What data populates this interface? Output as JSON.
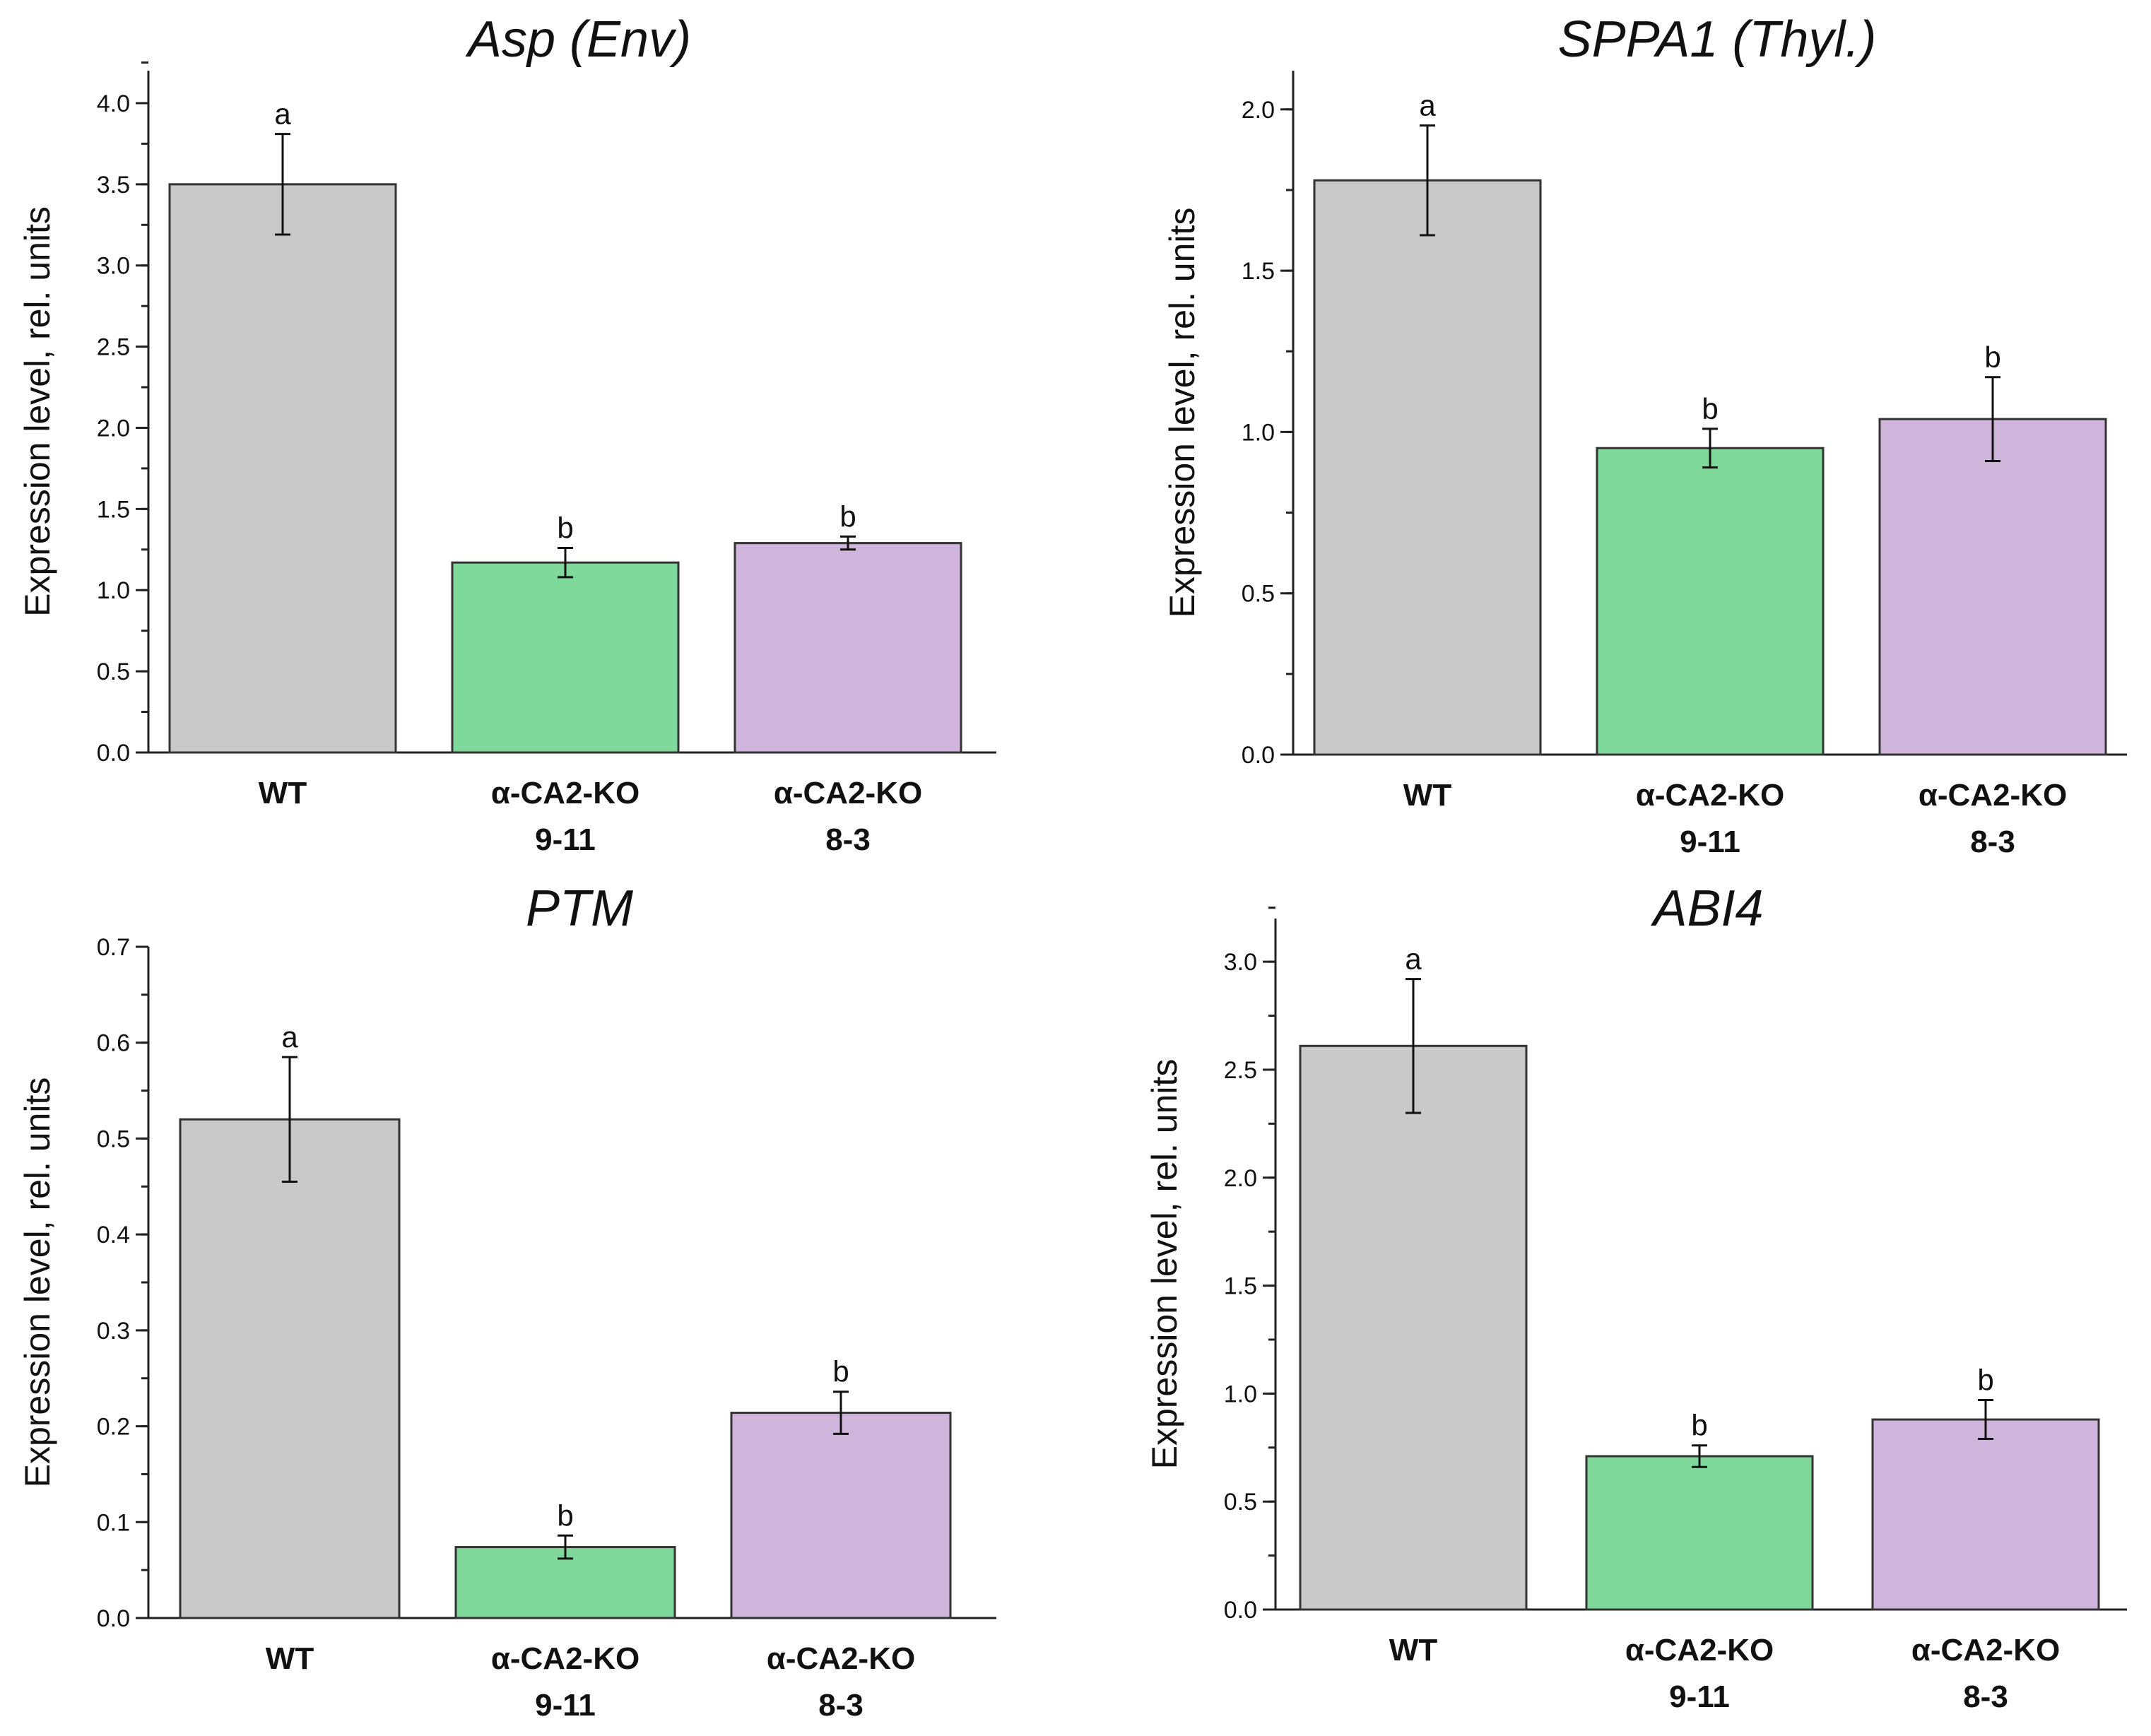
{
  "figure": {
    "panel_ids": [
      "asp",
      "sppa1",
      "ptm",
      "abi4"
    ]
  },
  "chart_data": [
    {
      "id": "asp",
      "type": "bar",
      "title": "Asp (Env)",
      "xlabel": "",
      "ylabel": "Expression level, rel. units",
      "categories": [
        {
          "line1": "WT",
          "line2": ""
        },
        {
          "line1": "α-CA2-KO",
          "line2": "9-11"
        },
        {
          "line1": "α-CA2-KO",
          "line2": "8-3"
        }
      ],
      "values": [
        3.5,
        1.17,
        1.29
      ],
      "errors": [
        0.31,
        0.09,
        0.04
      ],
      "significance": [
        "a",
        "b",
        "b"
      ],
      "colors": [
        "#c9c9c9",
        "#7ed99a",
        "#cfb5db"
      ],
      "ylim": [
        0,
        4.2
      ],
      "yticks": [
        "0.0",
        "0.5",
        "1.0",
        "1.5",
        "2.0",
        "2.5",
        "3.0",
        "3.5",
        "4.0"
      ],
      "ytick_values": [
        0,
        0.5,
        1.0,
        1.5,
        2.0,
        2.5,
        3.0,
        3.5,
        4.0
      ],
      "minor_step": 0.25,
      "grid": false
    },
    {
      "id": "sppa1",
      "type": "bar",
      "title": "SPPA1 (Thyl.)",
      "xlabel": "",
      "ylabel": "Expression level, rel. units",
      "categories": [
        {
          "line1": "WT",
          "line2": ""
        },
        {
          "line1": "α-CA2-KO",
          "line2": "9-11"
        },
        {
          "line1": "α-CA2-KO",
          "line2": "8-3"
        }
      ],
      "values": [
        1.78,
        0.95,
        1.04
      ],
      "errors": [
        0.17,
        0.06,
        0.13
      ],
      "significance": [
        "a",
        "b",
        "b"
      ],
      "colors": [
        "#c9c9c9",
        "#7ed99a",
        "#cfb5db"
      ],
      "ylim": [
        0,
        2.12
      ],
      "yticks": [
        "0.0",
        "0.5",
        "1.0",
        "1.5",
        "2.0"
      ],
      "ytick_values": [
        0,
        0.5,
        1.0,
        1.5,
        2.0
      ],
      "minor_step": 0.25,
      "grid": false
    },
    {
      "id": "ptm",
      "type": "bar",
      "title": "PTM",
      "xlabel": "",
      "ylabel": "Expression level, rel. units",
      "categories": [
        {
          "line1": "WT",
          "line2": ""
        },
        {
          "line1": "α-CA2-KO",
          "line2": "9-11"
        },
        {
          "line1": "α-CA2-KO",
          "line2": "8-3"
        }
      ],
      "values": [
        0.52,
        0.074,
        0.214
      ],
      "errors": [
        0.065,
        0.012,
        0.022
      ],
      "significance": [
        "a",
        "b",
        "b"
      ],
      "colors": [
        "#c9c9c9",
        "#7ed99a",
        "#cfb5db"
      ],
      "ylim": [
        0,
        0.7
      ],
      "yticks": [
        "0.0",
        "0.1",
        "0.2",
        "0.3",
        "0.4",
        "0.5",
        "0.6",
        "0.7"
      ],
      "ytick_values": [
        0,
        0.1,
        0.2,
        0.3,
        0.4,
        0.5,
        0.6,
        0.7
      ],
      "minor_step": 0.05,
      "grid": false
    },
    {
      "id": "abi4",
      "type": "bar",
      "title": "ABI4",
      "xlabel": "",
      "ylabel": "Expression level, rel. units",
      "categories": [
        {
          "line1": "WT",
          "line2": ""
        },
        {
          "line1": "α-CA2-KO",
          "line2": "9-11"
        },
        {
          "line1": "α-CA2-KO",
          "line2": "8-3"
        }
      ],
      "values": [
        2.61,
        0.71,
        0.88
      ],
      "errors": [
        0.31,
        0.05,
        0.09
      ],
      "significance": [
        "a",
        "b",
        "b"
      ],
      "colors": [
        "#c9c9c9",
        "#7ed99a",
        "#cfb5db"
      ],
      "ylim": [
        0,
        3.2
      ],
      "yticks": [
        "0.0",
        "0.5",
        "1.0",
        "1.5",
        "2.0",
        "2.5",
        "3.0"
      ],
      "ytick_values": [
        0,
        0.5,
        1.0,
        1.5,
        2.0,
        2.5,
        3.0
      ],
      "minor_step": 0.25,
      "grid": false
    }
  ]
}
